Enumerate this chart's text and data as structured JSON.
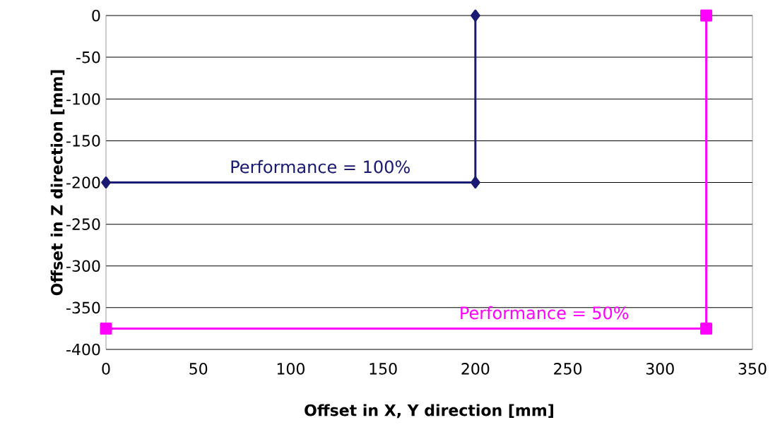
{
  "chart_data": {
    "type": "line",
    "xlabel": "Offset in X, Y direction [mm]",
    "ylabel": "Offset in Z direction [mm]",
    "xlim": [
      0,
      350
    ],
    "ylim": [
      -400,
      0
    ],
    "xticks": [
      0,
      50,
      100,
      150,
      200,
      250,
      300,
      350
    ],
    "yticks": [
      -400,
      -350,
      -300,
      -250,
      -200,
      -150,
      -100,
      -50,
      0
    ],
    "grid": "y",
    "line_style": "solid",
    "series": [
      {
        "name": "Performance = 100%",
        "color": "#1a1a73",
        "marker": "diamond",
        "x": [
          0,
          200,
          200
        ],
        "values": [
          -200,
          -200,
          0
        ]
      },
      {
        "name": "Performance = 50%",
        "color": "#ff00ff",
        "marker": "square",
        "x": [
          0,
          325,
          325
        ],
        "values": [
          -375,
          -375,
          0
        ]
      }
    ]
  }
}
